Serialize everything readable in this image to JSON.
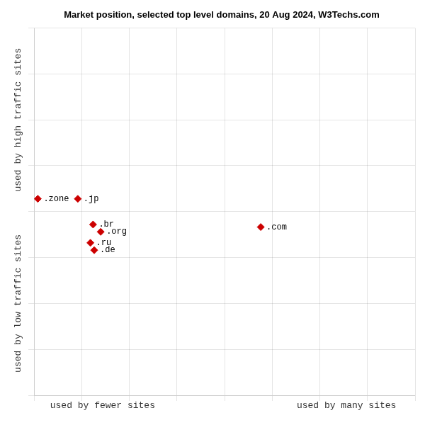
{
  "chart_data": {
    "type": "scatter",
    "title": "Market position, selected top level domains, 20 Aug 2024, W3Techs.com",
    "xlabels": [
      "used by fewer sites",
      "used by many sites"
    ],
    "ylabels": [
      "used by low traffic sites",
      "used by high traffic sites"
    ],
    "points": [
      {
        "label": ".zone",
        "x": 0.01,
        "y": 0.535
      },
      {
        "label": ".jp",
        "x": 0.115,
        "y": 0.535
      },
      {
        "label": ".br",
        "x": 0.155,
        "y": 0.465
      },
      {
        "label": ".org",
        "x": 0.175,
        "y": 0.445
      },
      {
        "label": ".ru",
        "x": 0.148,
        "y": 0.415
      },
      {
        "label": ".de",
        "x": 0.158,
        "y": 0.395
      },
      {
        "label": ".com",
        "x": 0.595,
        "y": 0.458
      }
    ],
    "color": "#cc0000",
    "marker": "diamond",
    "xlim": [
      0,
      1
    ],
    "ylim": [
      0,
      1
    ],
    "xticks": [
      0,
      0.125,
      0.25,
      0.375,
      0.5,
      0.625,
      0.75,
      0.875,
      1
    ],
    "yticks": [
      0,
      0.125,
      0.25,
      0.375,
      0.5,
      0.625,
      0.75,
      0.875,
      1
    ],
    "tick_labels": false,
    "grid": true
  }
}
